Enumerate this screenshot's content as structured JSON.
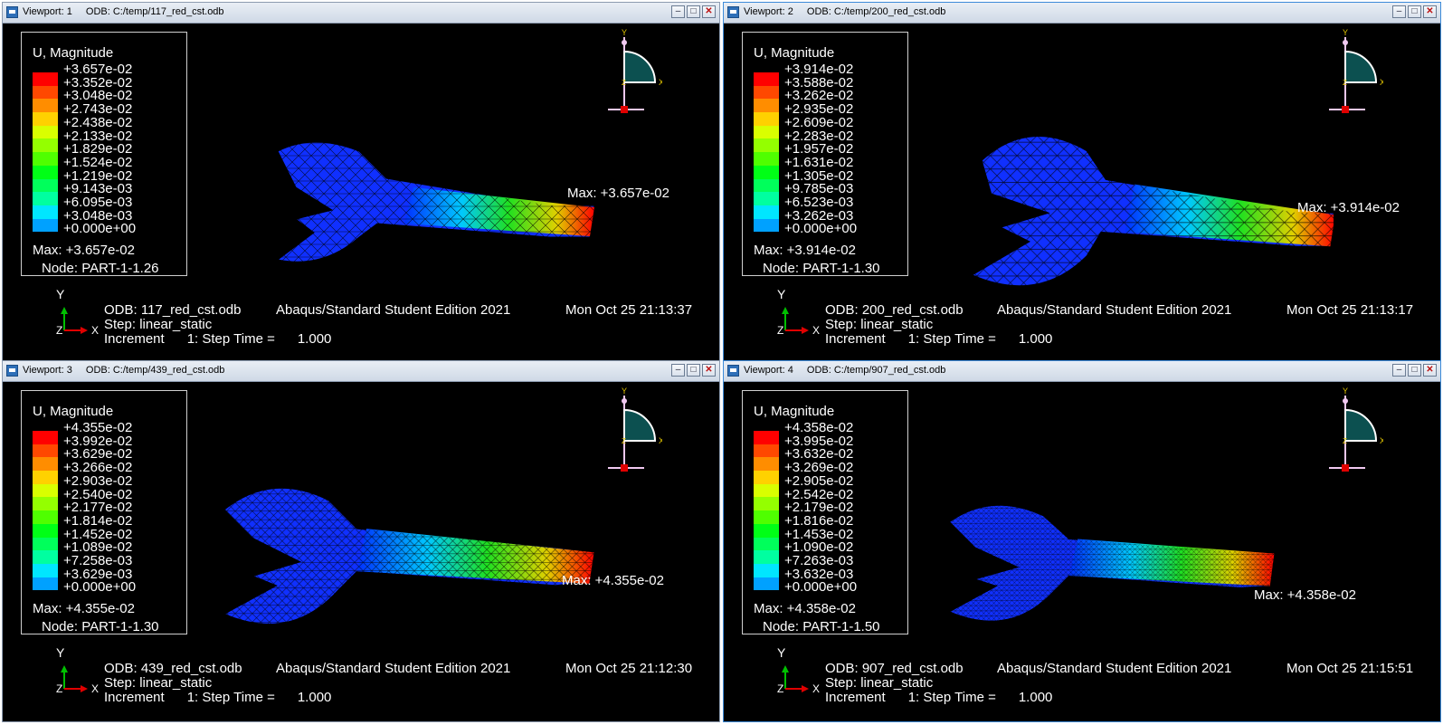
{
  "colors": {
    "legend": [
      "#ff0000",
      "#ff4800",
      "#ff8d00",
      "#ffd100",
      "#d9ff00",
      "#94ff00",
      "#4fff00",
      "#00ff16",
      "#00ff5b",
      "#00ffa0",
      "#00e6ff",
      "#00a1ff",
      "#005cff",
      "#0017ff"
    ]
  },
  "viewports": [
    {
      "title": "Viewport: 1",
      "odb_path": "ODB: C:/temp/117_red_cst.odb",
      "legend_title": "U, Magnitude",
      "legend_values": [
        "+3.657e-02",
        "+3.352e-02",
        "+3.048e-02",
        "+2.743e-02",
        "+2.438e-02",
        "+2.133e-02",
        "+1.829e-02",
        "+1.524e-02",
        "+1.219e-02",
        "+9.143e-03",
        "+6.095e-03",
        "+3.048e-03",
        "+0.000e+00"
      ],
      "max_text": "Max: +3.657e-02",
      "node_text": "Node: PART-1-1.26",
      "max_annotation": "Max: +3.657e-02",
      "footer_odb": "ODB: 117_red_cst.odb",
      "footer_edition": "Abaqus/Standard Student Edition 2021",
      "footer_date": "Mon Oct 25 21:13:37",
      "step": "Step: linear_static",
      "increment": "Increment      1: Step Time =      1.000"
    },
    {
      "title": "Viewport: 2",
      "odb_path": "ODB: C:/temp/200_red_cst.odb",
      "legend_title": "U, Magnitude",
      "legend_values": [
        "+3.914e-02",
        "+3.588e-02",
        "+3.262e-02",
        "+2.935e-02",
        "+2.609e-02",
        "+2.283e-02",
        "+1.957e-02",
        "+1.631e-02",
        "+1.305e-02",
        "+9.785e-03",
        "+6.523e-03",
        "+3.262e-03",
        "+0.000e+00"
      ],
      "max_text": "Max: +3.914e-02",
      "node_text": "Node: PART-1-1.30",
      "max_annotation": "Max: +3.914e-02",
      "footer_odb": "ODB: 200_red_cst.odb",
      "footer_edition": "Abaqus/Standard Student Edition 2021",
      "footer_date": "Mon Oct 25 21:13:17",
      "step": "Step: linear_static",
      "increment": "Increment      1: Step Time =      1.000"
    },
    {
      "title": "Viewport: 3",
      "odb_path": "ODB: C:/temp/439_red_cst.odb",
      "legend_title": "U, Magnitude",
      "legend_values": [
        "+4.355e-02",
        "+3.992e-02",
        "+3.629e-02",
        "+3.266e-02",
        "+2.903e-02",
        "+2.540e-02",
        "+2.177e-02",
        "+1.814e-02",
        "+1.452e-02",
        "+1.089e-02",
        "+7.258e-03",
        "+3.629e-03",
        "+0.000e+00"
      ],
      "max_text": "Max: +4.355e-02",
      "node_text": "Node: PART-1-1.30",
      "max_annotation": "Max: +4.355e-02",
      "footer_odb": "ODB: 439_red_cst.odb",
      "footer_edition": "Abaqus/Standard Student Edition 2021",
      "footer_date": "Mon Oct 25 21:12:30",
      "step": "Step: linear_static",
      "increment": "Increment      1: Step Time =      1.000"
    },
    {
      "title": "Viewport: 4",
      "odb_path": "ODB: C:/temp/907_red_cst.odb",
      "legend_title": "U, Magnitude",
      "legend_values": [
        "+4.358e-02",
        "+3.995e-02",
        "+3.632e-02",
        "+3.269e-02",
        "+2.905e-02",
        "+2.542e-02",
        "+2.179e-02",
        "+1.816e-02",
        "+1.453e-02",
        "+1.090e-02",
        "+7.263e-03",
        "+3.632e-03",
        "+0.000e+00"
      ],
      "max_text": "Max: +4.358e-02",
      "node_text": "Node: PART-1-1.50",
      "max_annotation": "Max: +4.358e-02",
      "footer_odb": "ODB: 907_red_cst.odb",
      "footer_edition": "Abaqus/Standard Student Edition 2021",
      "footer_date": "Mon Oct 25 21:15:51",
      "step": "Step: linear_static",
      "increment": "Increment      1: Step Time =      1.000"
    }
  ],
  "triad_labels": {
    "y": "Y",
    "x": "X",
    "z": "Z"
  }
}
